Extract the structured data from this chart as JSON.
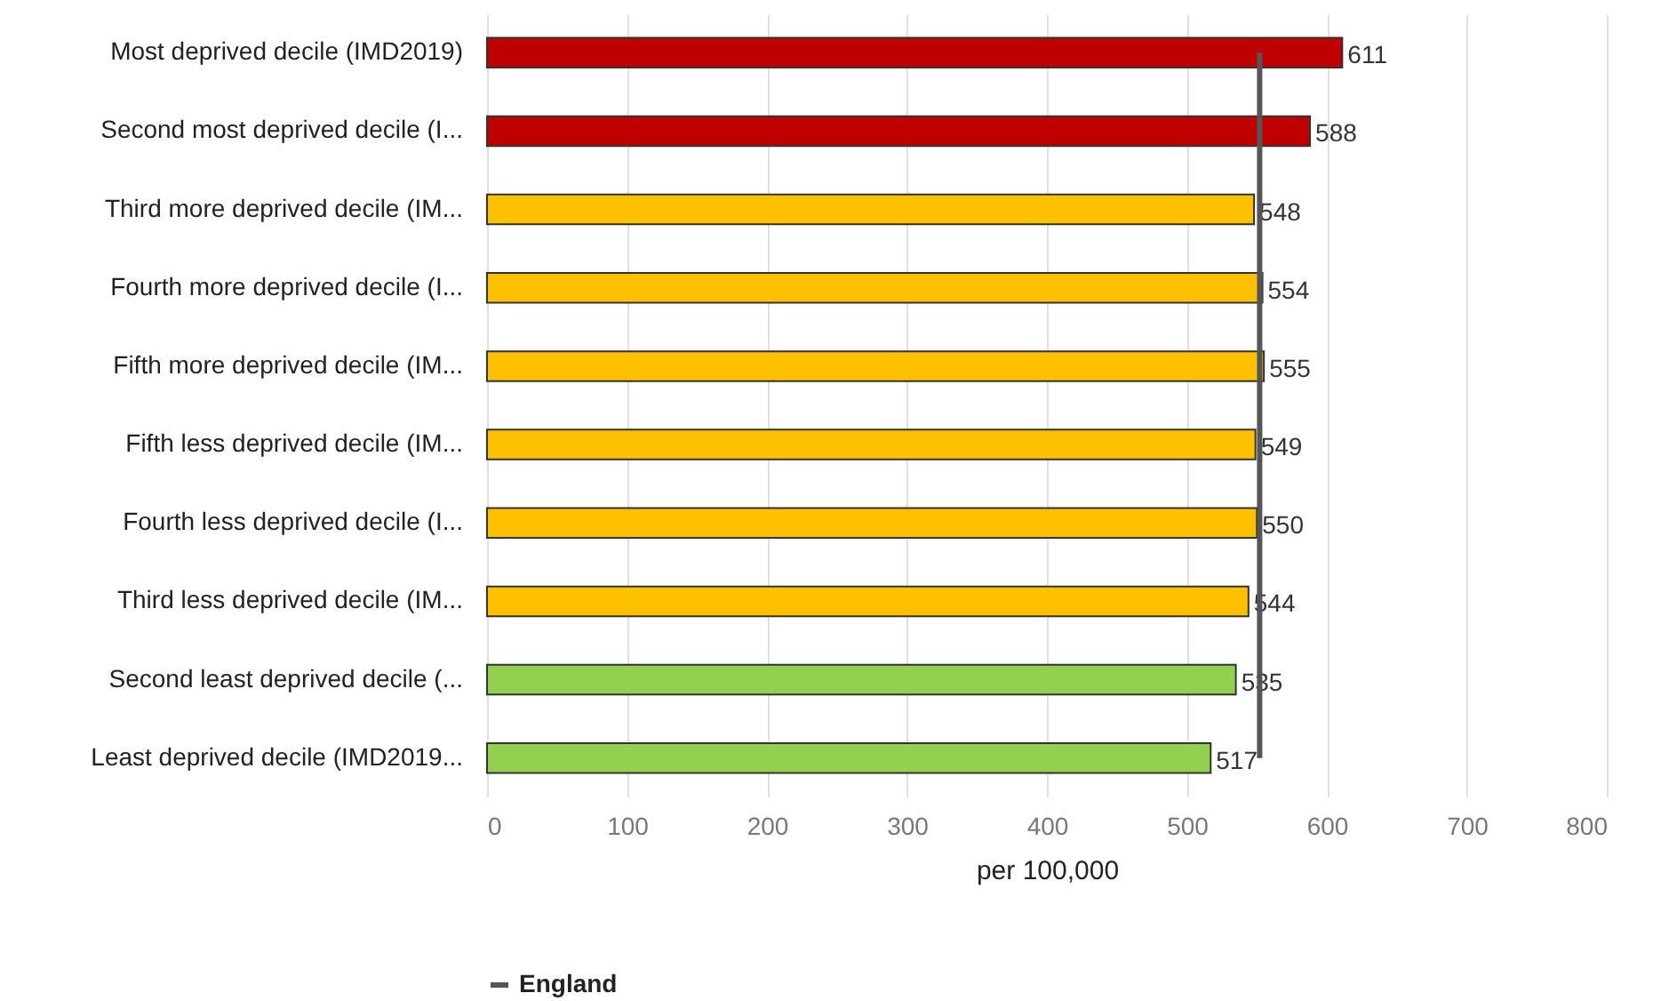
{
  "chart_data": {
    "type": "bar",
    "orientation": "horizontal",
    "xlabel": "per 100,000",
    "categories": [
      "Most deprived decile (IMD2019)",
      "Second most deprived decile (I...",
      "Third more deprived decile (IM...",
      "Fourth more deprived decile (I...",
      "Fifth more deprived decile (IM...",
      "Fifth less deprived decile (IM...",
      "Fourth less deprived decile (I...",
      "Third less deprived decile (IM...",
      "Second least deprived decile (...",
      "Least deprived decile (IMD2019..."
    ],
    "series": [
      {
        "value_labels": [
          "611",
          "588",
          "548",
          "554",
          "555",
          "549",
          "550",
          "544",
          "535",
          "517"
        ],
        "colors": [
          "#c00000",
          "#c00000",
          "#ffc000",
          "#ffc000",
          "#ffc000",
          "#ffc000",
          "#ffc000",
          "#ffc000",
          "#92d050",
          "#92d050"
        ],
        "values": [
          611,
          588,
          548,
          554,
          555,
          549,
          550,
          544,
          535,
          517
        ]
      },
      {
        "type": "line",
        "name": "England",
        "color": "#555555",
        "values": [
          552,
          552,
          552,
          552,
          552,
          552,
          552,
          552,
          552,
          552
        ]
      }
    ],
    "xlim": [
      0,
      800
    ],
    "xticks": [
      0,
      100,
      200,
      300,
      400,
      500,
      600,
      700,
      800
    ],
    "grid": "x",
    "legend": "bottom"
  }
}
